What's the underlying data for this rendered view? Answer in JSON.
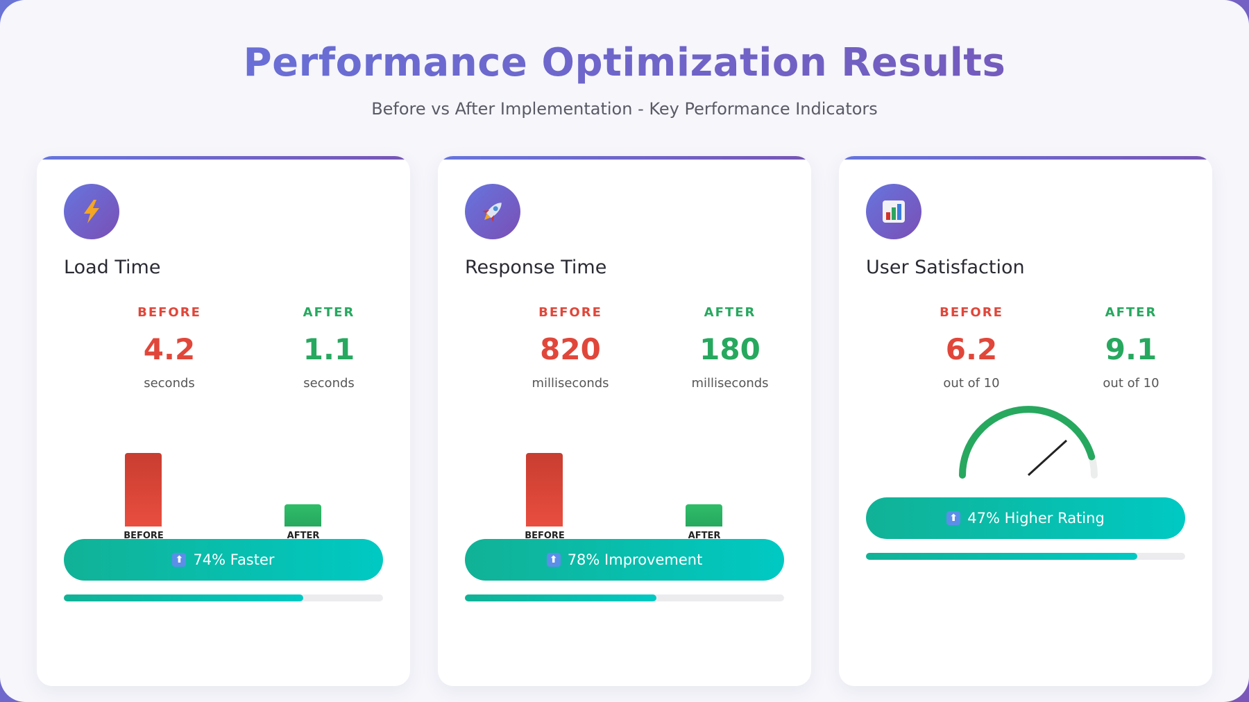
{
  "header": {
    "title": "Performance Optimization Results",
    "subtitle": "Before vs After Implementation - Key Performance Indicators"
  },
  "colors": {
    "accent": "#6a68d2",
    "before": "#e0473a",
    "after": "#27a85f",
    "badge": "#11b296"
  },
  "cards": [
    {
      "icon": "lightning-icon",
      "icon_glyph": "⚡",
      "title": "Load Time",
      "before_label": "BEFORE",
      "before_value": "4.2",
      "before_unit": "seconds",
      "after_label": "AFTER",
      "after_value": "1.1",
      "after_unit": "seconds",
      "bar_before_caption": "BEFORE",
      "bar_after_caption": "AFTER",
      "badge": "74% Faster",
      "progress": 0.75
    },
    {
      "icon": "rocket-icon",
      "icon_glyph": "🚀",
      "title": "Response Time",
      "before_label": "BEFORE",
      "before_value": "820",
      "before_unit": "milliseconds",
      "after_label": "AFTER",
      "after_value": "180",
      "after_unit": "milliseconds",
      "bar_before_caption": "BEFORE",
      "bar_after_caption": "AFTER",
      "badge": "78% Improvement",
      "progress": 0.6
    },
    {
      "icon": "bar-chart-icon",
      "title": "User Satisfaction",
      "before_label": "BEFORE",
      "before_value": "6.2",
      "before_unit": "out of 10",
      "after_label": "AFTER",
      "after_value": "9.1",
      "after_unit": "out of 10",
      "badge": "47% Higher Rating",
      "progress": 0.85,
      "gauge_fraction": 0.91
    }
  ],
  "chart_data": [
    {
      "type": "bar",
      "categories": [
        "BEFORE",
        "AFTER"
      ],
      "values": [
        4.2,
        1.1
      ]
    },
    {
      "type": "bar",
      "categories": [
        "BEFORE",
        "AFTER"
      ],
      "values": [
        820,
        180
      ]
    }
  ]
}
